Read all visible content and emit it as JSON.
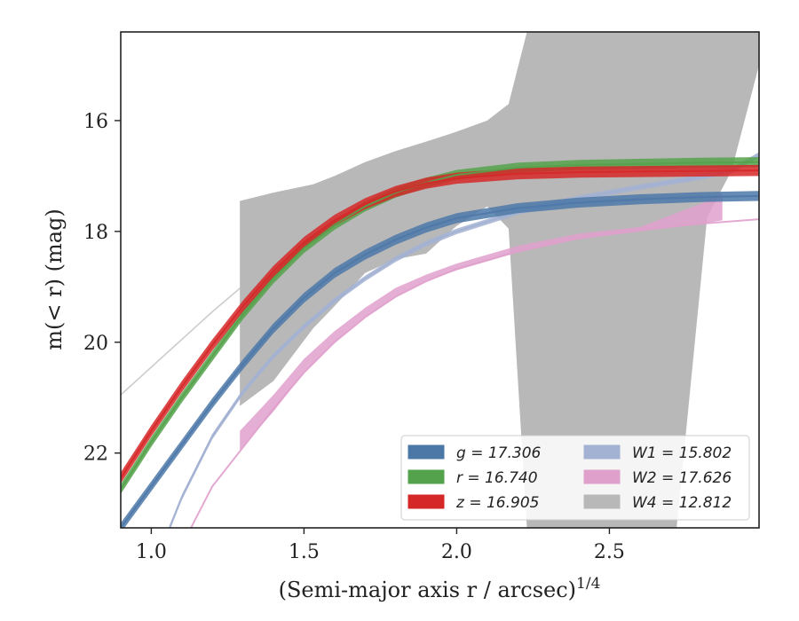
{
  "chart_data": {
    "type": "line",
    "title": "",
    "xlabel": "(Semi-major axis r / arcsec)",
    "xlabel_superscript": "1/4",
    "ylabel": "m(< r) (mag)",
    "xlim": [
      0.9,
      2.99
    ],
    "ylim": [
      23.35,
      14.4
    ],
    "y_inverted": true,
    "xticks": [
      1.0,
      1.5,
      2.0,
      2.5
    ],
    "xtick_labels": [
      "1.0",
      "1.5",
      "2.0",
      "2.5"
    ],
    "yticks": [
      16,
      18,
      20,
      22
    ],
    "ytick_labels": [
      "16",
      "18",
      "20",
      "22"
    ],
    "grid": false,
    "legend_position": "lower-right",
    "legend_columns": 2,
    "series": [
      {
        "name": "g = 17.306",
        "color": "#4c78a8",
        "points": [
          [
            0.9,
            23.35
          ],
          [
            1.0,
            22.6
          ],
          [
            1.1,
            21.85
          ],
          [
            1.2,
            21.1
          ],
          [
            1.3,
            20.4
          ],
          [
            1.4,
            19.75
          ],
          [
            1.5,
            19.2
          ],
          [
            1.6,
            18.75
          ],
          [
            1.7,
            18.42
          ],
          [
            1.8,
            18.15
          ],
          [
            1.9,
            17.93
          ],
          [
            2.0,
            17.76
          ],
          [
            2.2,
            17.58
          ],
          [
            2.4,
            17.48
          ],
          [
            2.6,
            17.42
          ],
          [
            2.8,
            17.38
          ],
          [
            2.99,
            17.36
          ]
        ],
        "band_half_width": 0.09
      },
      {
        "name": "r = 16.740",
        "color": "#54a24b",
        "points": [
          [
            0.9,
            22.65
          ],
          [
            1.0,
            21.8
          ],
          [
            1.1,
            21.0
          ],
          [
            1.2,
            20.25
          ],
          [
            1.3,
            19.5
          ],
          [
            1.4,
            18.85
          ],
          [
            1.5,
            18.3
          ],
          [
            1.6,
            17.88
          ],
          [
            1.7,
            17.55
          ],
          [
            1.8,
            17.3
          ],
          [
            1.9,
            17.12
          ],
          [
            2.0,
            16.98
          ],
          [
            2.2,
            16.85
          ],
          [
            2.4,
            16.8
          ],
          [
            2.6,
            16.78
          ],
          [
            2.8,
            16.76
          ],
          [
            2.99,
            16.75
          ]
        ],
        "band_half_width": 0.09
      },
      {
        "name": "z = 16.905",
        "color": "#d62728",
        "points": [
          [
            0.9,
            22.45
          ],
          [
            1.0,
            21.6
          ],
          [
            1.1,
            20.8
          ],
          [
            1.2,
            20.05
          ],
          [
            1.3,
            19.35
          ],
          [
            1.4,
            18.72
          ],
          [
            1.5,
            18.2
          ],
          [
            1.6,
            17.8
          ],
          [
            1.7,
            17.5
          ],
          [
            1.8,
            17.28
          ],
          [
            1.9,
            17.13
          ],
          [
            2.0,
            17.04
          ],
          [
            2.2,
            16.96
          ],
          [
            2.4,
            16.93
          ],
          [
            2.6,
            16.92
          ],
          [
            2.8,
            16.91
          ],
          [
            2.99,
            16.9
          ]
        ],
        "band_half_width": 0.1
      },
      {
        "name": "W1 = 15.802",
        "color": "#a3b1d2",
        "points": [
          [
            1.06,
            23.35
          ],
          [
            1.1,
            22.8
          ],
          [
            1.2,
            21.7
          ],
          [
            1.3,
            20.9
          ],
          [
            1.4,
            20.25
          ],
          [
            1.5,
            19.72
          ],
          [
            1.6,
            19.25
          ],
          [
            1.7,
            18.85
          ],
          [
            1.8,
            18.5
          ],
          [
            1.9,
            18.22
          ],
          [
            2.0,
            18.0
          ],
          [
            2.2,
            17.65
          ],
          [
            2.4,
            17.4
          ],
          [
            2.6,
            17.2
          ],
          [
            2.8,
            17.02
          ],
          [
            2.9,
            16.9
          ],
          [
            2.99,
            16.62
          ]
        ],
        "band_half_width": 0.05
      },
      {
        "name": "W2 = 17.626",
        "color": "#e0a0cc",
        "points": [
          [
            1.13,
            23.35
          ],
          [
            1.2,
            22.6
          ],
          [
            1.3,
            21.9
          ],
          [
            1.4,
            21.2
          ],
          [
            1.5,
            20.55
          ],
          [
            1.6,
            20.0
          ],
          [
            1.7,
            19.55
          ],
          [
            1.8,
            19.18
          ],
          [
            1.9,
            18.9
          ],
          [
            2.0,
            18.68
          ],
          [
            2.2,
            18.36
          ],
          [
            2.4,
            18.12
          ],
          [
            2.6,
            17.97
          ],
          [
            2.8,
            17.86
          ],
          [
            2.99,
            17.78
          ]
        ],
        "band": [
          [
            1.29,
            21.95,
            21.6
          ],
          [
            1.4,
            21.25,
            20.95
          ],
          [
            1.5,
            20.55,
            20.3
          ],
          [
            1.6,
            20.0,
            19.8
          ],
          [
            1.7,
            19.55,
            19.38
          ],
          [
            1.8,
            19.18,
            19.02
          ],
          [
            1.9,
            18.9,
            18.78
          ],
          [
            2.0,
            18.7,
            18.58
          ],
          [
            2.2,
            18.38,
            18.26
          ],
          [
            2.4,
            18.14,
            18.04
          ],
          [
            2.6,
            18.0,
            17.92
          ],
          [
            2.8,
            17.86,
            17.5
          ],
          [
            2.87,
            17.8,
            17.3
          ]
        ]
      },
      {
        "name": "W4 = 12.812",
        "color": "#b8b8b8",
        "points": [
          [
            0.9,
            20.95
          ],
          [
            1.0,
            20.45
          ],
          [
            1.1,
            19.95
          ],
          [
            1.2,
            19.45
          ],
          [
            1.3,
            18.98
          ],
          [
            1.4,
            18.5
          ],
          [
            1.5,
            18.05
          ],
          [
            1.6,
            17.65
          ],
          [
            1.7,
            17.3
          ],
          [
            1.8,
            17.0
          ],
          [
            1.9,
            16.75
          ],
          [
            2.0,
            16.52
          ],
          [
            2.2,
            16.12
          ],
          [
            2.4,
            15.78
          ],
          [
            2.6,
            15.5
          ],
          [
            2.8,
            15.24
          ],
          [
            2.99,
            15.0
          ]
        ],
        "band": [
          [
            1.29,
            21.15,
            17.45
          ],
          [
            1.4,
            20.7,
            17.3
          ],
          [
            1.53,
            19.75,
            17.15
          ],
          [
            1.6,
            19.35,
            17.0
          ],
          [
            1.7,
            18.75,
            16.75
          ],
          [
            1.8,
            18.5,
            16.55
          ],
          [
            1.9,
            18.4,
            16.38
          ],
          [
            2.0,
            17.9,
            16.2
          ],
          [
            2.1,
            17.55,
            16.0
          ],
          [
            2.17,
            17.95,
            15.7
          ],
          [
            2.23,
            23.35,
            14.4
          ],
          [
            2.4,
            23.35,
            14.4
          ],
          [
            2.6,
            23.35,
            14.4
          ],
          [
            2.72,
            23.35,
            14.4
          ],
          [
            2.82,
            17.75,
            14.4
          ],
          [
            2.9,
            16.9,
            14.4
          ],
          [
            2.99,
            15.0,
            14.4
          ]
        ]
      }
    ]
  }
}
